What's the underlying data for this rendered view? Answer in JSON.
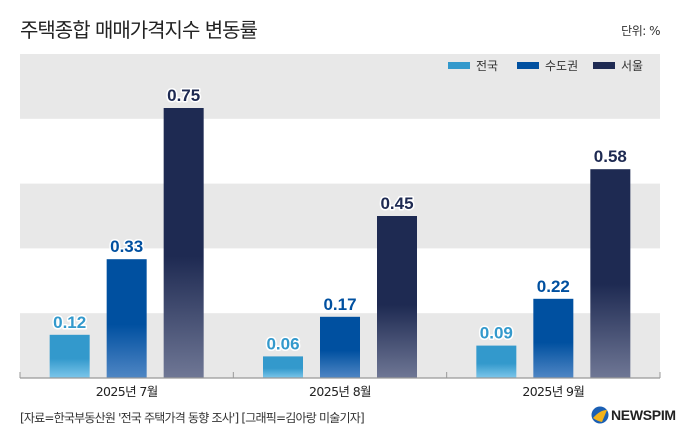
{
  "header": {
    "title": "주택종합 매매가격지수 변동률",
    "unit": "단위: %"
  },
  "footer": {
    "source": "[자료=한국부동산원 '전국 주택가격 동향 조사'] [그래픽=김아랑 미술기자]",
    "logo_text": "NEWSPIM",
    "logo_icon": "newspim-logo-icon"
  },
  "chart_data": {
    "type": "bar",
    "title": "주택종합 매매가격지수 변동률",
    "xlabel": "",
    "ylabel": "",
    "unit": "%",
    "categories": [
      "2025년 7월",
      "2025년 8월",
      "2025년 9월"
    ],
    "series": [
      {
        "name": "전국",
        "color": "#3399cc",
        "values": [
          0.12,
          0.06,
          0.09
        ]
      },
      {
        "name": "수도권",
        "color": "#0050a0",
        "values": [
          0.33,
          0.17,
          0.22
        ]
      },
      {
        "name": "서울",
        "color": "#1e2a52",
        "values": [
          0.75,
          0.45,
          0.58
        ]
      }
    ],
    "ylim": [
      0,
      0.9
    ],
    "grid": "alternating horizontal bands",
    "y_tick_labels_shown": false,
    "data_labels": true,
    "legend": "top-right"
  }
}
